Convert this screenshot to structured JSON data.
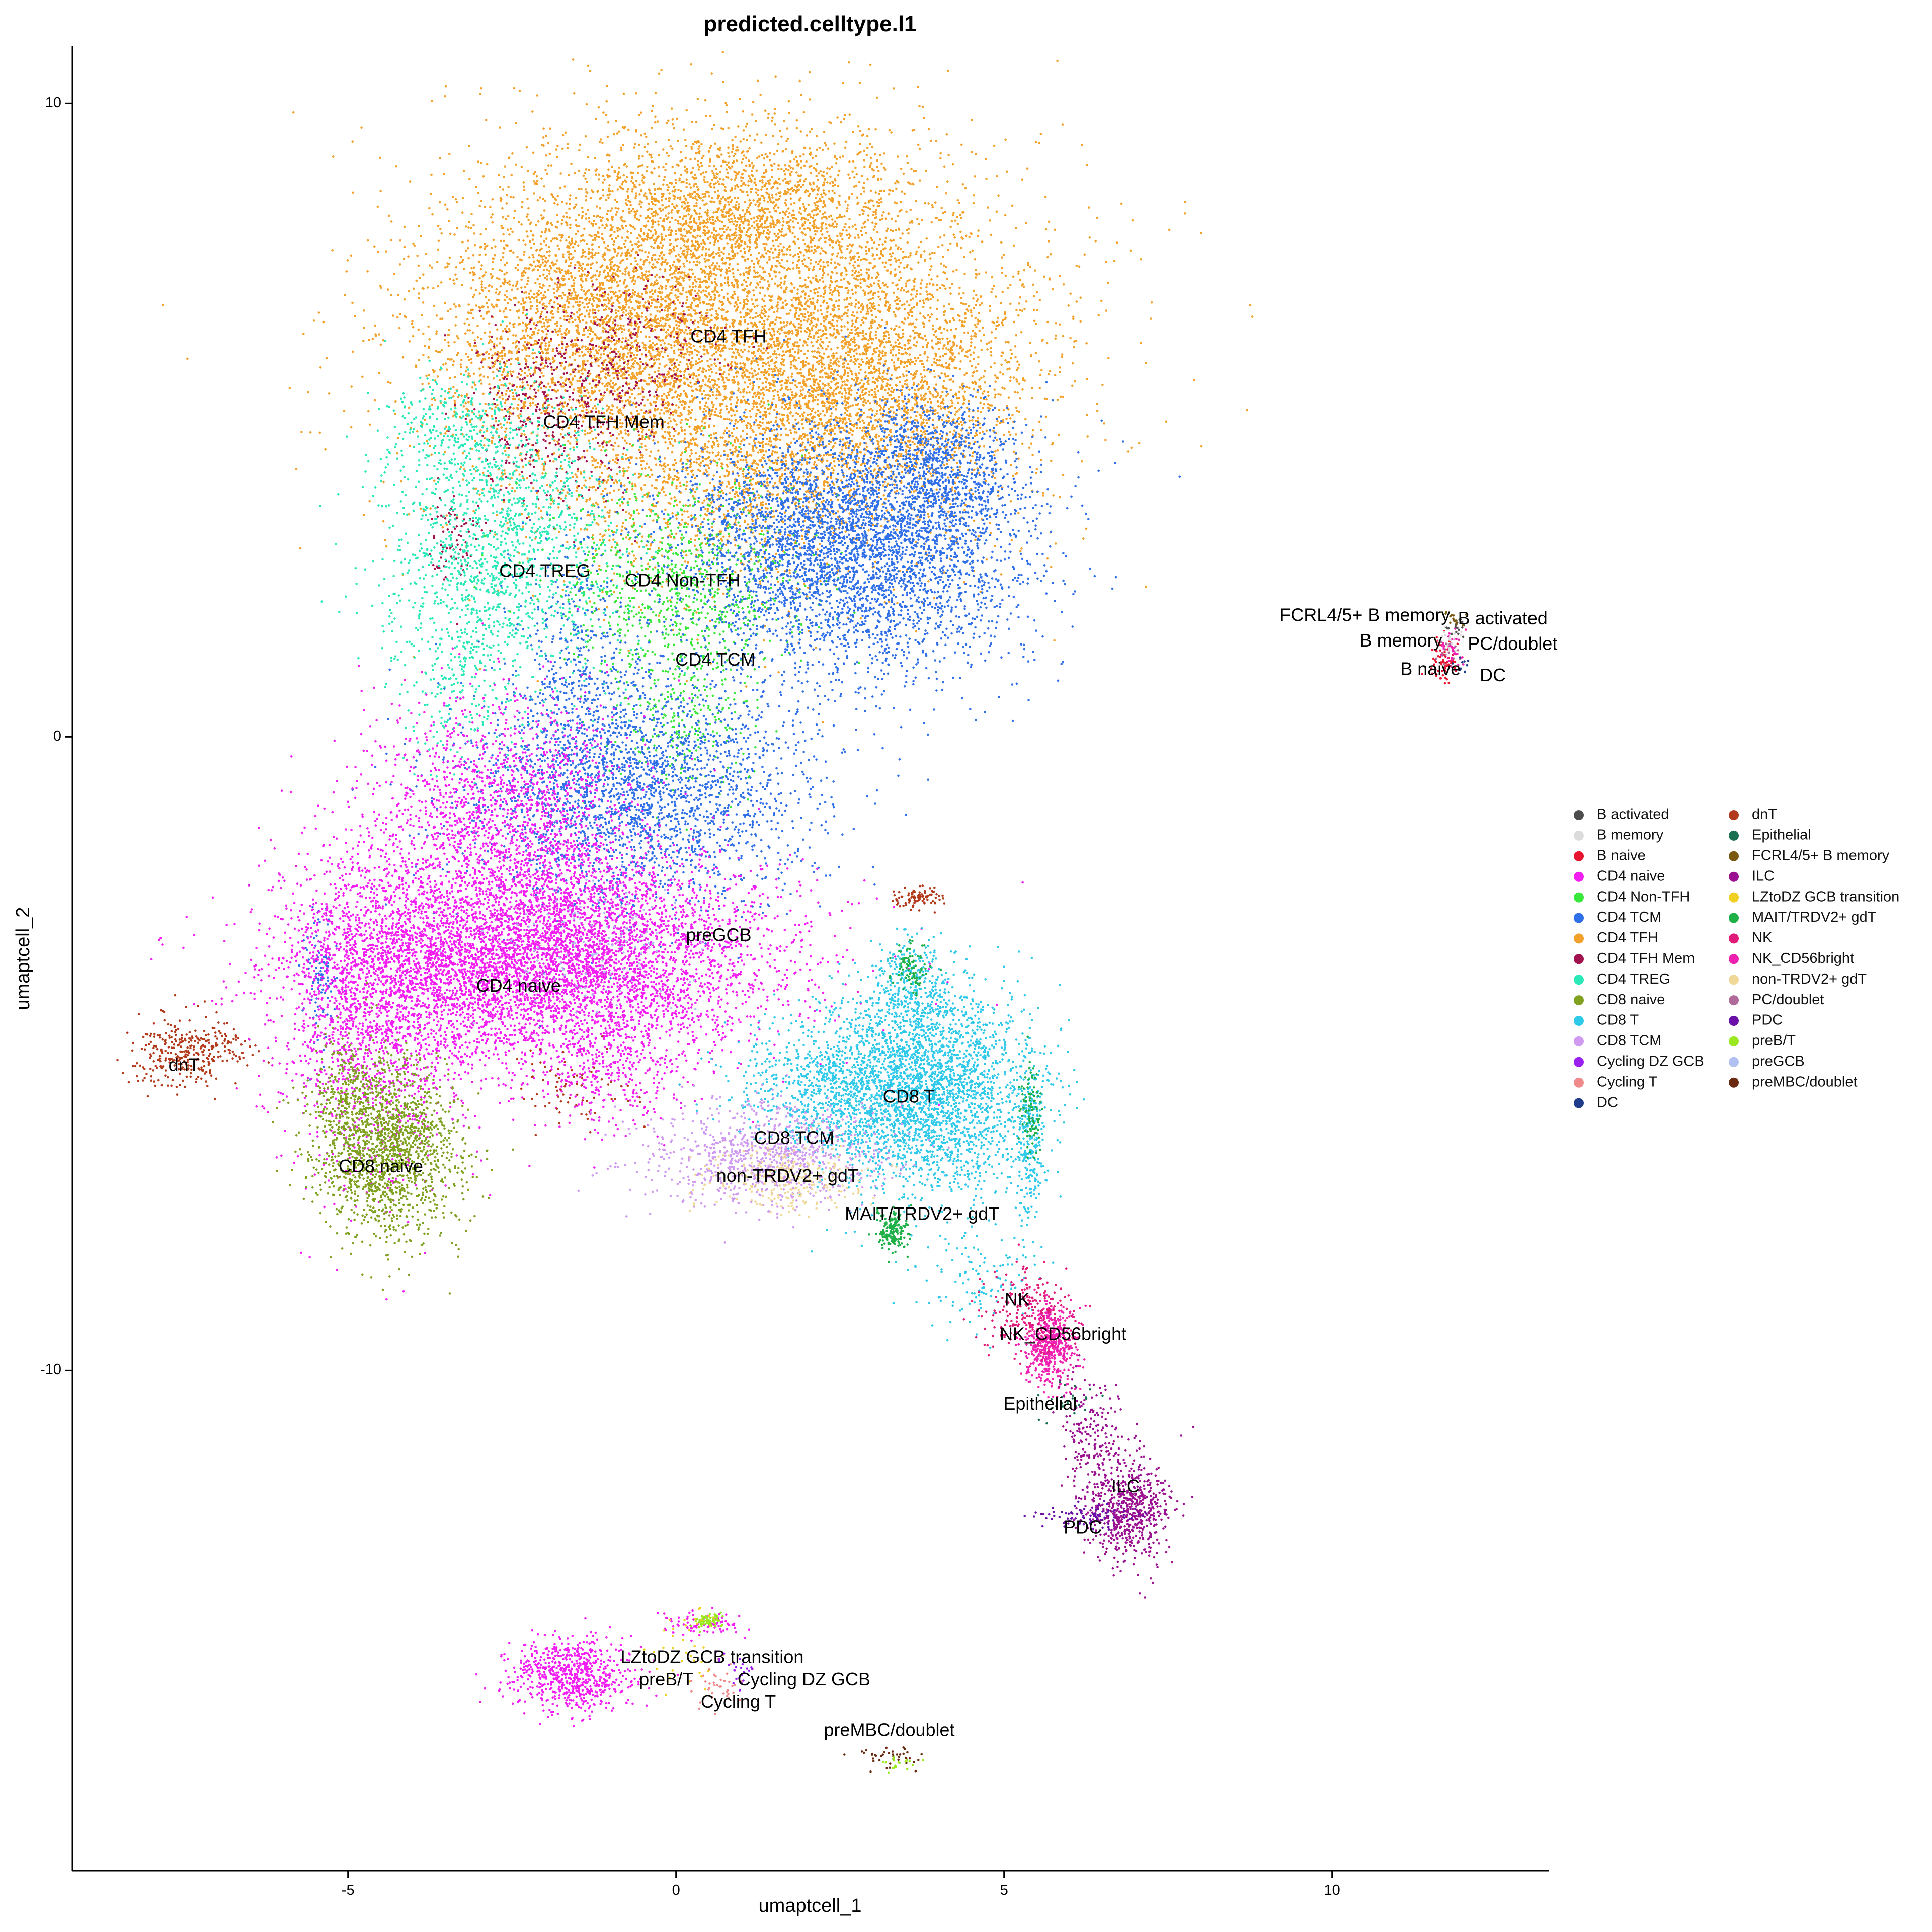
{
  "chart_data": {
    "type": "scatter",
    "title": "predicted.celltype.l1",
    "xlabel": "umaptcell_1",
    "ylabel": "umaptcell_2",
    "xlim": [
      -9.2,
      13.3
    ],
    "ylim": [
      -17.9,
      10.9
    ],
    "xticks": [
      -5,
      0,
      5,
      10
    ],
    "yticks": [
      10,
      0,
      -10
    ],
    "grid": false,
    "legend_position": "right",
    "legend": [
      {
        "label": "B activated",
        "color": "#4d4d4d"
      },
      {
        "label": "B memory",
        "color": "#dcdcdc"
      },
      {
        "label": "B naive",
        "color": "#e8132e"
      },
      {
        "label": "CD4 naive",
        "color": "#f21ef2"
      },
      {
        "label": "CD4 Non-TFH",
        "color": "#38e83a"
      },
      {
        "label": "CD4 TCM",
        "color": "#2f6fe8"
      },
      {
        "label": "CD4 TFH",
        "color": "#f2a12a"
      },
      {
        "label": "CD4 TFH Mem",
        "color": "#a2124f"
      },
      {
        "label": "CD4 TREG",
        "color": "#2ae8b8"
      },
      {
        "label": "CD8 naive",
        "color": "#7fa11f"
      },
      {
        "label": "CD8 T",
        "color": "#2fc9ea"
      },
      {
        "label": "CD8 TCM",
        "color": "#d09af0"
      },
      {
        "label": "Cycling DZ GCB",
        "color": "#9a1ff0"
      },
      {
        "label": "Cycling T",
        "color": "#f08a8a"
      },
      {
        "label": "DC",
        "color": "#1f3d8a"
      },
      {
        "label": "dnT",
        "color": "#b23a1a"
      },
      {
        "label": "Epithelial",
        "color": "#1a7050"
      },
      {
        "label": "FCRL4/5+ B memory",
        "color": "#7a5a10"
      },
      {
        "label": "ILC",
        "color": "#9a1090"
      },
      {
        "label": "LZtoDZ GCB transition",
        "color": "#f0d020"
      },
      {
        "label": "MAIT/TRDV2+ gdT",
        "color": "#20b048"
      },
      {
        "label": "NK",
        "color": "#e01a78"
      },
      {
        "label": "NK_CD56bright",
        "color": "#f020b0"
      },
      {
        "label": "non-TRDV2+ gdT",
        "color": "#f0d898"
      },
      {
        "label": "PC/doublet",
        "color": "#b06a9a"
      },
      {
        "label": "PDC",
        "color": "#6a10a8"
      },
      {
        "label": "preB/T",
        "color": "#9ae820"
      },
      {
        "label": "preGCB",
        "color": "#b0c0f0"
      },
      {
        "label": "preMBC/doublet",
        "color": "#6a2a10"
      }
    ],
    "cluster_labels": [
      {
        "text": "CD4 TFH",
        "x": 0.8,
        "y": 6.3
      },
      {
        "text": "CD4 TFH Mem",
        "x": -1.1,
        "y": 4.95
      },
      {
        "text": "CD4 TREG",
        "x": -2.0,
        "y": 2.6
      },
      {
        "text": "CD4 Non-TFH",
        "x": 0.1,
        "y": 2.45
      },
      {
        "text": "CD4 TCM",
        "x": 0.6,
        "y": 1.2
      },
      {
        "text": "preGCB",
        "x": 0.65,
        "y": -3.15
      },
      {
        "text": "CD4 naive",
        "x": -2.4,
        "y": -3.95
      },
      {
        "text": "dnT",
        "x": -7.5,
        "y": -5.2
      },
      {
        "text": "CD8 T",
        "x": 3.55,
        "y": -5.7
      },
      {
        "text": "CD8 TCM",
        "x": 1.8,
        "y": -6.35
      },
      {
        "text": "CD8 naive",
        "x": -4.5,
        "y": -6.8
      },
      {
        "text": "non-TRDV2+ gdT",
        "x": 1.7,
        "y": -6.95
      },
      {
        "text": "MAIT/TRDV2+ gdT",
        "x": 3.75,
        "y": -7.55
      },
      {
        "text": "NK",
        "x": 5.2,
        "y": -8.9
      },
      {
        "text": "NK_CD56bright",
        "x": 5.9,
        "y": -9.45
      },
      {
        "text": "Epithelial",
        "x": 5.55,
        "y": -10.55
      },
      {
        "text": "ILC",
        "x": 6.85,
        "y": -11.85
      },
      {
        "text": "PDC",
        "x": 6.2,
        "y": -12.5
      },
      {
        "text": "FCRL4/5+ B memory",
        "x": 10.5,
        "y": 1.9
      },
      {
        "text": "B activated",
        "x": 12.6,
        "y": 1.85
      },
      {
        "text": "B memory",
        "x": 11.05,
        "y": 1.5
      },
      {
        "text": "PC/doublet",
        "x": 12.75,
        "y": 1.45
      },
      {
        "text": "B naive",
        "x": 11.5,
        "y": 1.05
      },
      {
        "text": "DC",
        "x": 12.45,
        "y": 0.95
      },
      {
        "text": "LZtoDZ GCB transition",
        "x": 0.55,
        "y": -14.55
      },
      {
        "text": "preB/T",
        "x": -0.15,
        "y": -14.9
      },
      {
        "text": "Cycling DZ GCB",
        "x": 1.95,
        "y": -14.9
      },
      {
        "text": "Cycling T",
        "x": 0.95,
        "y": -15.25
      },
      {
        "text": "preMBC/doublet",
        "x": 3.25,
        "y": -15.7
      }
    ],
    "point_clusters": [
      {
        "label": "CD4 TFH",
        "cx": 0.9,
        "cy": 6.3,
        "sx": 2.2,
        "sy": 1.55,
        "n": 6000
      },
      {
        "label": "CD4 TFH",
        "cx": -1.2,
        "cy": 6.6,
        "sx": 1.3,
        "sy": 1.0,
        "n": 1800
      },
      {
        "label": "CD4 TFH",
        "cx": 3.1,
        "cy": 5.5,
        "sx": 1.1,
        "sy": 0.9,
        "n": 1600
      },
      {
        "label": "CD4 TFH",
        "cx": 1.0,
        "cy": 8.3,
        "sx": 1.3,
        "sy": 0.6,
        "n": 1400
      },
      {
        "label": "CD4 TFH",
        "cx": 0.8,
        "cy": 4.0,
        "sx": 1.6,
        "sy": 0.9,
        "n": 900
      },
      {
        "label": "CD4 TFH Mem",
        "cx": -1.8,
        "cy": 5.2,
        "sx": 0.7,
        "sy": 0.8,
        "n": 450
      },
      {
        "label": "CD4 TFH Mem",
        "cx": -0.6,
        "cy": 6.1,
        "sx": 0.6,
        "sy": 0.6,
        "n": 220
      },
      {
        "label": "CD4 TFH Mem",
        "cx": -3.4,
        "cy": 3.1,
        "sx": 0.2,
        "sy": 0.4,
        "n": 80
      },
      {
        "label": "CD4 TREG",
        "cx": -2.6,
        "cy": 3.1,
        "sx": 0.9,
        "sy": 1.1,
        "n": 1400
      },
      {
        "label": "CD4 TREG",
        "cx": -3.4,
        "cy": 4.9,
        "sx": 0.5,
        "sy": 0.4,
        "n": 250
      },
      {
        "label": "CD4 TREG",
        "cx": -3.2,
        "cy": 1.2,
        "sx": 0.5,
        "sy": 0.9,
        "n": 300
      },
      {
        "label": "CD4 Non-TFH",
        "cx": 0.1,
        "cy": 2.3,
        "sx": 0.9,
        "sy": 0.9,
        "n": 950
      },
      {
        "label": "CD4 Non-TFH",
        "cx": 0.1,
        "cy": 0.2,
        "sx": 0.6,
        "sy": 0.6,
        "n": 200
      },
      {
        "label": "CD4 TCM",
        "cx": 2.7,
        "cy": 3.0,
        "sx": 1.3,
        "sy": 1.0,
        "n": 4200
      },
      {
        "label": "CD4 TCM",
        "cx": 4.0,
        "cy": 4.2,
        "sx": 0.6,
        "sy": 0.6,
        "n": 700
      },
      {
        "label": "CD4 TCM",
        "cx": -0.6,
        "cy": -0.9,
        "sx": 1.3,
        "sy": 0.9,
        "n": 2400
      },
      {
        "label": "CD4 TCM",
        "cx": -1.5,
        "cy": 0.8,
        "sx": 0.5,
        "sy": 1.2,
        "n": 500
      },
      {
        "label": "CD4 TCM",
        "cx": -5.4,
        "cy": -3.7,
        "sx": 0.15,
        "sy": 0.5,
        "n": 100
      },
      {
        "label": "CD4 naive",
        "cx": -2.0,
        "cy": -3.5,
        "sx": 1.7,
        "sy": 0.8,
        "n": 6000
      },
      {
        "label": "CD4 naive",
        "cx": -2.6,
        "cy": -1.2,
        "sx": 1.0,
        "sy": 0.9,
        "n": 1600
      },
      {
        "label": "CD4 naive",
        "cx": -4.6,
        "cy": -4.2,
        "sx": 0.7,
        "sy": 1.3,
        "n": 1700
      },
      {
        "label": "CD4 naive",
        "cx": -1.0,
        "cy": -5.3,
        "sx": 0.6,
        "sy": 0.5,
        "n": 300
      },
      {
        "label": "preGCB",
        "cx": -1.2,
        "cy": -3.2,
        "sx": 0.8,
        "sy": 0.5,
        "n": 120
      },
      {
        "label": "CD8 naive",
        "cx": -4.4,
        "cy": -6.5,
        "sx": 0.55,
        "sy": 0.7,
        "n": 1600
      },
      {
        "label": "CD8 naive",
        "cx": -5.0,
        "cy": -5.6,
        "sx": 0.3,
        "sy": 0.4,
        "n": 200
      },
      {
        "label": "dnT",
        "cx": -7.6,
        "cy": -5.0,
        "sx": 0.35,
        "sy": 0.3,
        "n": 260
      },
      {
        "label": "dnT",
        "cx": -6.9,
        "cy": -4.9,
        "sx": 0.35,
        "sy": 0.15,
        "n": 70
      },
      {
        "label": "dnT",
        "cx": 3.7,
        "cy": -2.55,
        "sx": 0.2,
        "sy": 0.07,
        "n": 90
      },
      {
        "label": "dnT",
        "cx": -1.6,
        "cy": -5.6,
        "sx": 0.4,
        "sy": 0.3,
        "n": 70
      },
      {
        "label": "CD8 T",
        "cx": 3.8,
        "cy": -5.6,
        "sx": 0.8,
        "sy": 0.8,
        "n": 2800
      },
      {
        "label": "CD8 T",
        "cx": 2.3,
        "cy": -5.5,
        "sx": 0.7,
        "sy": 0.5,
        "n": 700
      },
      {
        "label": "CD8 T",
        "cx": 5.4,
        "cy": -6.3,
        "sx": 0.1,
        "sy": 0.7,
        "n": 250
      },
      {
        "label": "CD8 T",
        "cx": 3.6,
        "cy": -4.0,
        "sx": 0.3,
        "sy": 0.4,
        "n": 300
      },
      {
        "label": "CD8 T",
        "cx": 4.6,
        "cy": -8.5,
        "sx": 0.5,
        "sy": 0.4,
        "n": 120
      },
      {
        "label": "CD8 TCM",
        "cx": 1.4,
        "cy": -6.6,
        "sx": 0.9,
        "sy": 0.4,
        "n": 900
      },
      {
        "label": "non-TRDV2+ gdT",
        "cx": 1.7,
        "cy": -7.0,
        "sx": 0.6,
        "sy": 0.25,
        "n": 260
      },
      {
        "label": "MAIT/TRDV2+ gdT",
        "cx": 3.3,
        "cy": -7.8,
        "sx": 0.12,
        "sy": 0.15,
        "n": 180
      },
      {
        "label": "MAIT/TRDV2+ gdT",
        "cx": 5.4,
        "cy": -5.9,
        "sx": 0.08,
        "sy": 0.4,
        "n": 90
      },
      {
        "label": "MAIT/TRDV2+ gdT",
        "cx": 3.6,
        "cy": -3.7,
        "sx": 0.15,
        "sy": 0.2,
        "n": 90
      },
      {
        "label": "NK_CD56bright",
        "cx": 5.7,
        "cy": -9.6,
        "sx": 0.2,
        "sy": 0.3,
        "n": 520
      },
      {
        "label": "NK",
        "cx": 5.3,
        "cy": -9.1,
        "sx": 0.35,
        "sy": 0.35,
        "n": 220
      },
      {
        "label": "ILC",
        "cx": 6.9,
        "cy": -12.2,
        "sx": 0.3,
        "sy": 0.4,
        "n": 650
      },
      {
        "label": "ILC",
        "cx": 6.3,
        "cy": -11.0,
        "sx": 0.25,
        "sy": 0.5,
        "n": 200
      },
      {
        "label": "PDC",
        "cx": 6.3,
        "cy": -12.3,
        "sx": 0.35,
        "sy": 0.1,
        "n": 90
      },
      {
        "label": "Epithelial",
        "cx": 6.0,
        "cy": -10.5,
        "sx": 0.2,
        "sy": 0.2,
        "n": 25
      },
      {
        "label": "CD4 naive",
        "cx": -1.6,
        "cy": -14.8,
        "sx": 0.45,
        "sy": 0.3,
        "n": 700
      },
      {
        "label": "CD4 naive",
        "cx": 0.4,
        "cy": -14.0,
        "sx": 0.3,
        "sy": 0.1,
        "n": 90
      },
      {
        "label": "preB/T",
        "cx": 0.5,
        "cy": -13.95,
        "sx": 0.1,
        "sy": 0.07,
        "n": 70
      },
      {
        "label": "LZtoDZ GCB transition",
        "cx": 0.2,
        "cy": -14.4,
        "sx": 0.3,
        "sy": 0.3,
        "n": 40
      },
      {
        "label": "Cycling T",
        "cx": 0.6,
        "cy": -15.0,
        "sx": 0.25,
        "sy": 0.2,
        "n": 40
      },
      {
        "label": "Cycling DZ GCB",
        "cx": 0.9,
        "cy": -14.8,
        "sx": 0.2,
        "sy": 0.2,
        "n": 25
      },
      {
        "label": "preMBC/doublet",
        "cx": 3.3,
        "cy": -16.1,
        "sx": 0.25,
        "sy": 0.1,
        "n": 40
      },
      {
        "label": "preB/T",
        "cx": 3.4,
        "cy": -16.2,
        "sx": 0.2,
        "sy": 0.08,
        "n": 20
      },
      {
        "label": "B naive",
        "cx": 11.7,
        "cy": 1.2,
        "sx": 0.12,
        "sy": 0.15,
        "n": 70
      },
      {
        "label": "NK_CD56bright",
        "cx": 11.8,
        "cy": 1.4,
        "sx": 0.1,
        "sy": 0.15,
        "n": 40
      },
      {
        "label": "B memory",
        "cx": 11.75,
        "cy": 1.5,
        "sx": 0.1,
        "sy": 0.1,
        "n": 25
      },
      {
        "label": "B activated",
        "cx": 11.9,
        "cy": 1.75,
        "sx": 0.1,
        "sy": 0.1,
        "n": 20
      },
      {
        "label": "FCRL4/5+ B memory",
        "cx": 11.85,
        "cy": 1.85,
        "sx": 0.08,
        "sy": 0.08,
        "n": 15
      },
      {
        "label": "PC/doublet",
        "cx": 11.8,
        "cy": 1.3,
        "sx": 0.12,
        "sy": 0.12,
        "n": 15
      },
      {
        "label": "DC",
        "cx": 12.0,
        "cy": 1.1,
        "sx": 0.08,
        "sy": 0.08,
        "n": 10
      }
    ]
  }
}
